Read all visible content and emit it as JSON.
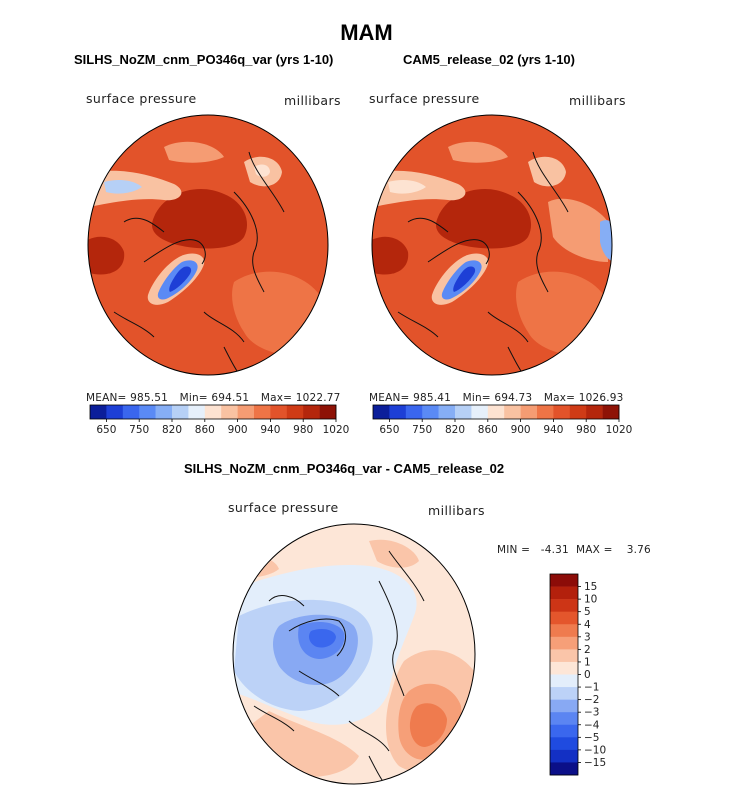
{
  "figure": {
    "title": "MAM"
  },
  "colors": {
    "abs_scale": [
      "#0b1e9a",
      "#1d3fd6",
      "#3a66ee",
      "#5a8af5",
      "#86aef5",
      "#b6d0f6",
      "#e6f0fb",
      "#fde3d2",
      "#f9c2a2",
      "#f59c73",
      "#ee7446",
      "#e2532a",
      "#cf3b16",
      "#b4260c",
      "#8e1206"
    ],
    "diff_scale": [
      "#0b0f88",
      "#1330c4",
      "#1f4be0",
      "#3a67ee",
      "#5b85f2",
      "#88a9f3",
      "#bcd2f7",
      "#e3eefb",
      "#fde6d7",
      "#fac5a9",
      "#f69f78",
      "#ef7b4e",
      "#e4562c",
      "#cd3516",
      "#b3200c",
      "#8c0c08"
    ]
  },
  "chart_data": [
    {
      "type": "heatmap",
      "projection": "north polar stereographic",
      "title": "SILHS_NoZM_cnm_PO346q_var (yrs 1-10)",
      "variable": "surface pressure",
      "units": "millibars",
      "stats": {
        "mean": "985.51",
        "min": "694.51",
        "max": "1022.77"
      },
      "mean_label": "MEAN=",
      "min_label": "Min=",
      "max_label": "Max=",
      "colorbar_levels": [
        650,
        700,
        750,
        800,
        820,
        840,
        860,
        880,
        900,
        920,
        940,
        960,
        980,
        1000,
        1020
      ],
      "colorbar_tick_labels": [
        "650",
        "750",
        "820",
        "860",
        "900",
        "940",
        "980",
        "1020"
      ]
    },
    {
      "type": "heatmap",
      "projection": "north polar stereographic",
      "title": "CAM5_release_02 (yrs 1-10)",
      "variable": "surface pressure",
      "units": "millibars",
      "stats": {
        "mean": "985.41",
        "min": "694.73",
        "max": "1026.93"
      },
      "mean_label": "MEAN=",
      "min_label": "Min=",
      "max_label": "Max=",
      "colorbar_levels": [
        650,
        700,
        750,
        800,
        820,
        840,
        860,
        880,
        900,
        920,
        940,
        960,
        980,
        1000,
        1020
      ],
      "colorbar_tick_labels": [
        "650",
        "750",
        "820",
        "860",
        "900",
        "940",
        "980",
        "1020"
      ]
    },
    {
      "type": "heatmap",
      "projection": "north polar stereographic",
      "title": "SILHS_NoZM_cnm_PO346q_var - CAM5_release_02",
      "variable": "surface pressure",
      "units": "millibars",
      "stats_text": "MIN =   -4.31  MAX =    3.76",
      "colorbar_levels": [
        -15,
        -10,
        -5,
        -4,
        -3,
        -2,
        -1,
        0,
        1,
        2,
        3,
        4,
        5,
        10,
        15
      ],
      "colorbar_tick_labels": [
        "15",
        "10",
        "5",
        "4",
        "3",
        "2",
        "1",
        "0",
        "−1",
        "−2",
        "−3",
        "−4",
        "−5",
        "−10",
        "−15"
      ]
    }
  ]
}
